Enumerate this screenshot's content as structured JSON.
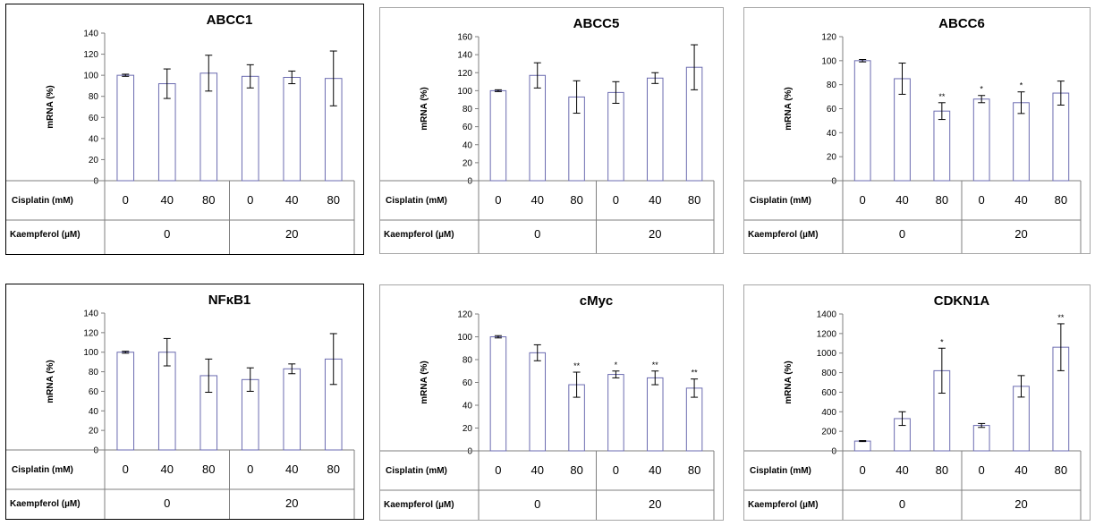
{
  "colors": {
    "bar_stroke": "#6b6bb0",
    "bar_fill": "#ffffff",
    "axis": "#7f7f7f",
    "frame": "#000000",
    "frame_light": "#a6a6a6"
  },
  "row_labels": {
    "cisplatin": "Cisplatin (mM)",
    "kaempferol": "Kaempferol (µM)"
  },
  "cisplatin_values": [
    "0",
    "40",
    "80",
    "0",
    "40",
    "80"
  ],
  "kaempferol_values": [
    "0",
    "20"
  ],
  "chart_data": [
    {
      "type": "bar",
      "title": "ABCC1",
      "ylabel": "mRNA (%)",
      "ylim": [
        0,
        140
      ],
      "yticks": [
        0,
        20,
        40,
        60,
        80,
        100,
        120,
        140
      ],
      "categories": [
        "0",
        "40",
        "80",
        "0",
        "40",
        "80"
      ],
      "values": [
        100,
        92,
        102,
        99,
        98,
        97
      ],
      "errors": [
        1,
        14,
        17,
        11,
        6,
        26
      ],
      "significance": [
        "",
        "",
        "",
        "",
        "",
        ""
      ],
      "frame": "dark"
    },
    {
      "type": "bar",
      "title": "ABCC5",
      "ylabel": "mRNA (%)",
      "ylim": [
        0,
        160
      ],
      "yticks": [
        0,
        20,
        40,
        60,
        80,
        100,
        120,
        140,
        160
      ],
      "categories": [
        "0",
        "40",
        "80",
        "0",
        "40",
        "80"
      ],
      "values": [
        100,
        117,
        93,
        98,
        114,
        126
      ],
      "errors": [
        1,
        14,
        18,
        12,
        6,
        25
      ],
      "significance": [
        "",
        "",
        "",
        "",
        "",
        ""
      ],
      "frame": "light"
    },
    {
      "type": "bar",
      "title": "ABCC6",
      "ylabel": "mRNA (%)",
      "ylim": [
        0,
        120
      ],
      "yticks": [
        0,
        20,
        40,
        60,
        80,
        100,
        120
      ],
      "categories": [
        "0",
        "40",
        "80",
        "0",
        "40",
        "80"
      ],
      "values": [
        100,
        85,
        58,
        68,
        65,
        73
      ],
      "errors": [
        1,
        13,
        7,
        3,
        9,
        10
      ],
      "significance": [
        "",
        "",
        "**",
        "*",
        "*",
        ""
      ],
      "frame": "light"
    },
    {
      "type": "bar",
      "title": "NFκB1",
      "ylabel": "mRNA (%)",
      "ylim": [
        0,
        140
      ],
      "yticks": [
        0,
        20,
        40,
        60,
        80,
        100,
        120,
        140
      ],
      "categories": [
        "0",
        "40",
        "80",
        "0",
        "40",
        "80"
      ],
      "values": [
        100,
        100,
        76,
        72,
        83,
        93
      ],
      "errors": [
        1,
        14,
        17,
        12,
        5,
        26
      ],
      "significance": [
        "",
        "",
        "",
        "",
        "",
        ""
      ],
      "frame": "dark"
    },
    {
      "type": "bar",
      "title": "cMyc",
      "ylabel": "mRNA (%)",
      "ylim": [
        0,
        120
      ],
      "yticks": [
        0,
        20,
        40,
        60,
        80,
        100,
        120
      ],
      "categories": [
        "0",
        "40",
        "80",
        "0",
        "40",
        "80"
      ],
      "values": [
        100,
        86,
        58,
        67,
        64,
        55
      ],
      "errors": [
        1,
        7,
        11,
        3,
        6,
        8
      ],
      "significance": [
        "",
        "",
        "**",
        "*",
        "**",
        "**"
      ],
      "frame": "light"
    },
    {
      "type": "bar",
      "title": "CDKN1A",
      "ylabel": "mRNA (%)",
      "ylim": [
        0,
        1400
      ],
      "yticks": [
        0,
        200,
        400,
        600,
        800,
        1000,
        1200,
        1400
      ],
      "categories": [
        "0",
        "40",
        "80",
        "0",
        "40",
        "80"
      ],
      "values": [
        100,
        330,
        820,
        260,
        660,
        1060
      ],
      "errors": [
        5,
        70,
        230,
        20,
        110,
        240
      ],
      "significance": [
        "",
        "",
        "*",
        "",
        "",
        "**"
      ],
      "frame": "light"
    }
  ]
}
